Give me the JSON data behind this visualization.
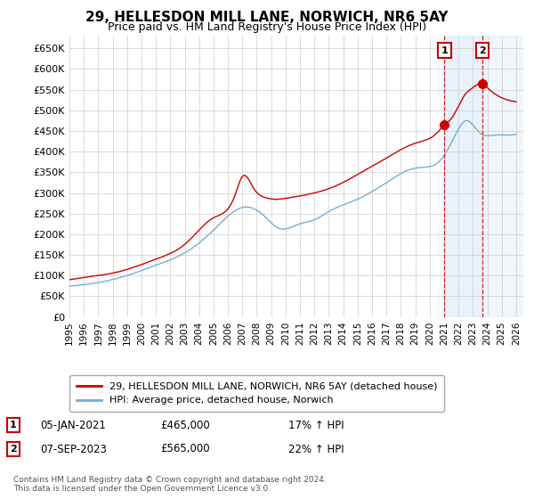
{
  "title": "29, HELLESDON MILL LANE, NORWICH, NR6 5AY",
  "subtitle": "Price paid vs. HM Land Registry's House Price Index (HPI)",
  "ylim": [
    0,
    680000
  ],
  "yticks": [
    0,
    50000,
    100000,
    150000,
    200000,
    250000,
    300000,
    350000,
    400000,
    450000,
    500000,
    550000,
    600000,
    650000
  ],
  "ytick_labels": [
    "£0",
    "£50K",
    "£100K",
    "£150K",
    "£200K",
    "£250K",
    "£300K",
    "£350K",
    "£400K",
    "£450K",
    "£500K",
    "£550K",
    "£600K",
    "£650K"
  ],
  "xtick_years": [
    1995,
    1996,
    1997,
    1998,
    1999,
    2000,
    2001,
    2002,
    2003,
    2004,
    2005,
    2006,
    2007,
    2008,
    2009,
    2010,
    2011,
    2012,
    2013,
    2014,
    2015,
    2016,
    2017,
    2018,
    2019,
    2020,
    2021,
    2022,
    2023,
    2024,
    2025,
    2026
  ],
  "line1_color": "#cc0000",
  "line2_color": "#7aadcf",
  "line1_label": "29, HELLESDON MILL LANE, NORWICH, NR6 5AY (detached house)",
  "line2_label": "HPI: Average price, detached house, Norwich",
  "ann1_x": 2021.03,
  "ann1_y": 465000,
  "ann2_x": 2023.67,
  "ann2_y": 565000,
  "ann1_date": "05-JAN-2021",
  "ann1_price": "£465,000",
  "ann1_hpi": "17% ↑ HPI",
  "ann2_date": "07-SEP-2023",
  "ann2_price": "£565,000",
  "ann2_hpi": "22% ↑ HPI",
  "footer1": "Contains HM Land Registry data © Crown copyright and database right 2024.",
  "footer2": "This data is licensed under the Open Government Licence v3.0.",
  "bg_color": "#ffffff",
  "grid_color": "#cccccc",
  "shade_color": "#d6e8f7",
  "ann_edge_color": "#cc0000"
}
